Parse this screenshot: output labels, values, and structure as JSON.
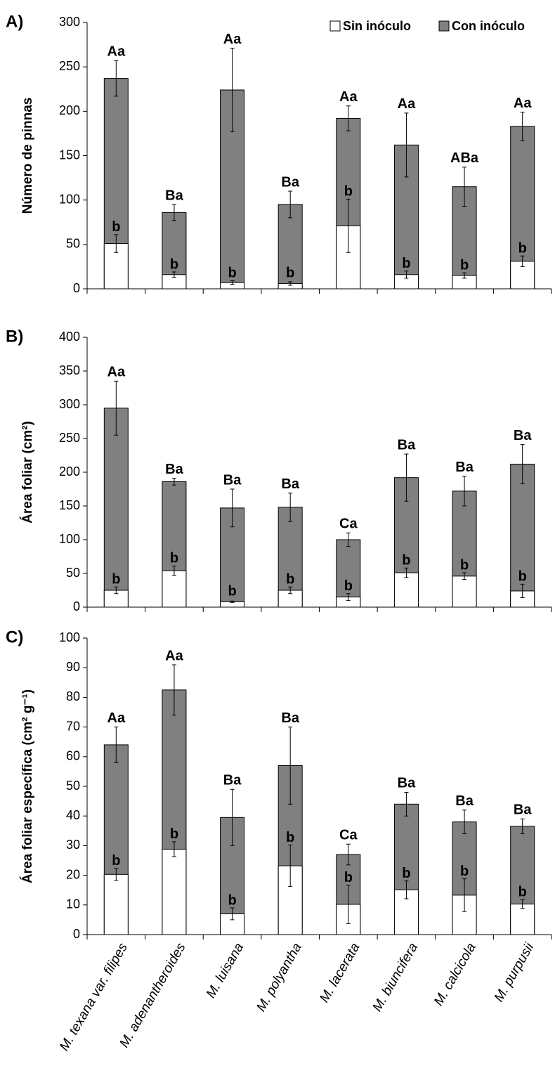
{
  "chart_data": [
    {
      "type": "bar",
      "panel": "A)",
      "ylabel": "Número de pinnas",
      "ylim": [
        0,
        300
      ],
      "yticks": [
        0,
        50,
        100,
        150,
        200,
        250,
        300
      ],
      "series": [
        {
          "name": "Con inóculo",
          "color": "#808080",
          "values": [
            237,
            86,
            224,
            95,
            192,
            162,
            115,
            183
          ],
          "errors": [
            20,
            9,
            47,
            15,
            14,
            36,
            22,
            16
          ],
          "letters": [
            "Aa",
            "Ba",
            "Aa",
            "Ba",
            "Aa",
            "Aa",
            "ABa",
            "Aa"
          ]
        },
        {
          "name": "Sin inóculo",
          "color": "#ffffff",
          "values": [
            51,
            16,
            7,
            6,
            71,
            16,
            15,
            31
          ],
          "errors": [
            10,
            3,
            2,
            2,
            30,
            4,
            3,
            6
          ],
          "letters": [
            "b",
            "b",
            "b",
            "b",
            "b",
            "b",
            "b",
            "b"
          ]
        }
      ]
    },
    {
      "type": "bar",
      "panel": "B)",
      "ylabel": "Área  foliar  (cm²)",
      "ylim": [
        0,
        400
      ],
      "yticks": [
        0,
        50,
        100,
        150,
        200,
        250,
        300,
        350,
        400
      ],
      "series": [
        {
          "color": "#808080",
          "values": [
            295,
            186,
            147,
            148,
            100,
            192,
            172,
            212
          ],
          "errors": [
            40,
            5,
            28,
            21,
            10,
            35,
            22,
            29
          ],
          "letters": [
            "Aa",
            "Ba",
            "Ba",
            "Ba",
            "Ca",
            "Ba",
            "Ba",
            "Ba"
          ]
        },
        {
          "color": "#ffffff",
          "values": [
            25,
            54,
            8,
            25,
            15,
            51,
            46,
            24
          ],
          "errors": [
            5,
            7,
            1,
            5,
            5,
            7,
            5,
            10
          ],
          "letters": [
            "b",
            "b",
            "b",
            "b",
            "b",
            "b",
            "b",
            "b"
          ]
        }
      ]
    },
    {
      "type": "bar",
      "panel": "C)",
      "ylabel": "Área foliar específica (cm² g⁻¹)",
      "ylim": [
        0,
        100
      ],
      "yticks": [
        0,
        10,
        20,
        30,
        40,
        50,
        60,
        70,
        80,
        90,
        100
      ],
      "categories": [
        "M. texana var. filipes",
        "M. adenantheroides",
        "M. luisana",
        "M. polyantha",
        "M. lacerata",
        "M. biuncifera",
        "M. calcicola",
        "M. purpusii"
      ],
      "series": [
        {
          "color": "#808080",
          "values": [
            64,
            82.5,
            39.5,
            57,
            27,
            44,
            38,
            36.5
          ],
          "errors": [
            6,
            8.5,
            9.5,
            13,
            3.5,
            4,
            4,
            2.5
          ],
          "letters": [
            "Aa",
            "Aa",
            "Ba",
            "Ba",
            "Ca",
            "Ba",
            "Ba",
            "Ba"
          ]
        },
        {
          "color": "#ffffff",
          "values": [
            20.3,
            28.8,
            7,
            23.2,
            10.2,
            15.1,
            13.3,
            10.3
          ],
          "errors": [
            2,
            2.5,
            2,
            7,
            6.5,
            3,
            5.5,
            1.5
          ],
          "letters": [
            "b",
            "b",
            "b",
            "b",
            "b",
            "b",
            "b",
            "b"
          ]
        }
      ]
    }
  ]
}
